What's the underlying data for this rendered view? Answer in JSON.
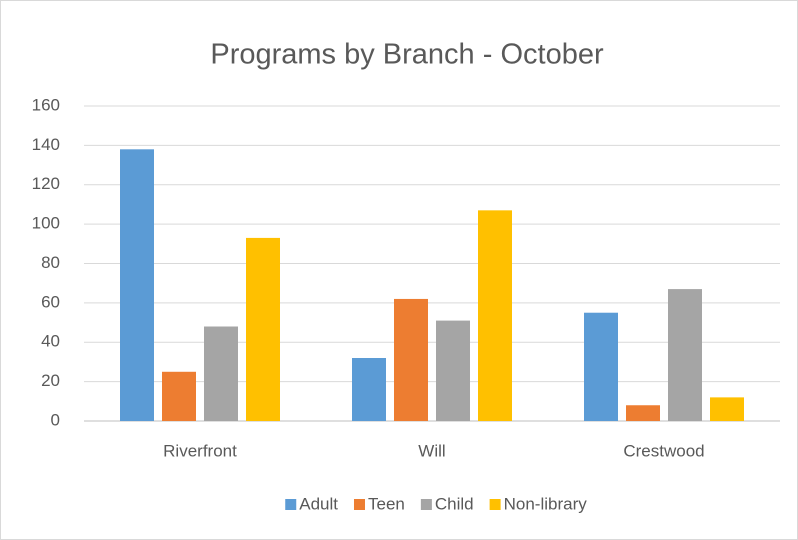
{
  "chart_data": {
    "type": "bar",
    "title": "Programs by Branch - October",
    "categories": [
      "Riverfront",
      "Will",
      "Crestwood"
    ],
    "series": [
      {
        "name": "Adult",
        "color": "#5b9bd5",
        "values": [
          138,
          32,
          55
        ]
      },
      {
        "name": "Teen",
        "color": "#ed7d31",
        "values": [
          25,
          62,
          8
        ]
      },
      {
        "name": "Child",
        "color": "#a5a5a5",
        "values": [
          48,
          51,
          67
        ]
      },
      {
        "name": "Non-library",
        "color": "#ffc000",
        "values": [
          93,
          107,
          12
        ]
      }
    ],
    "ylim": [
      0,
      160
    ],
    "yticks": [
      0,
      20,
      40,
      60,
      80,
      100,
      120,
      140,
      160
    ],
    "grid": true,
    "legend": "bottom"
  }
}
